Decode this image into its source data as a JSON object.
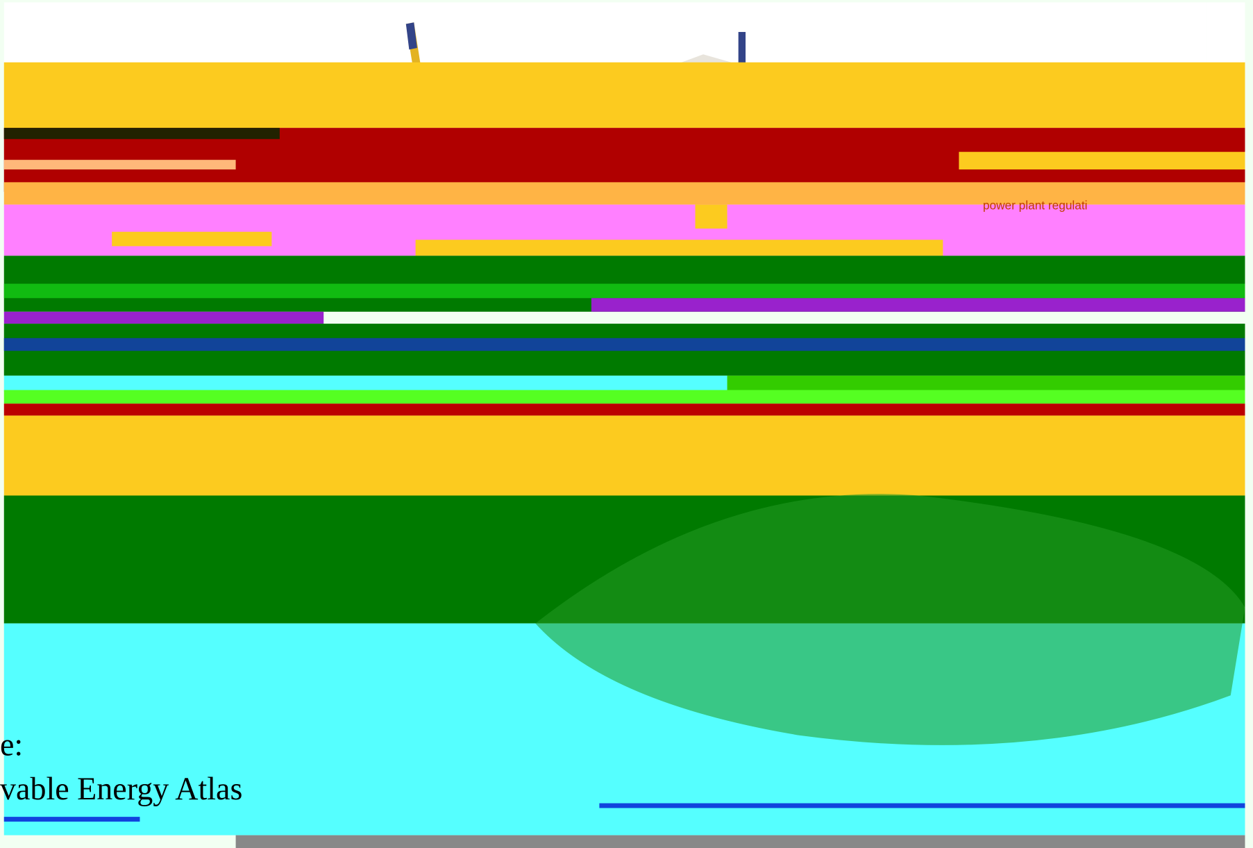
{
  "screen": {
    "overlay_label": "power plant regulati",
    "source_prefix": "e:",
    "source_name": "vable Energy Atlas"
  }
}
